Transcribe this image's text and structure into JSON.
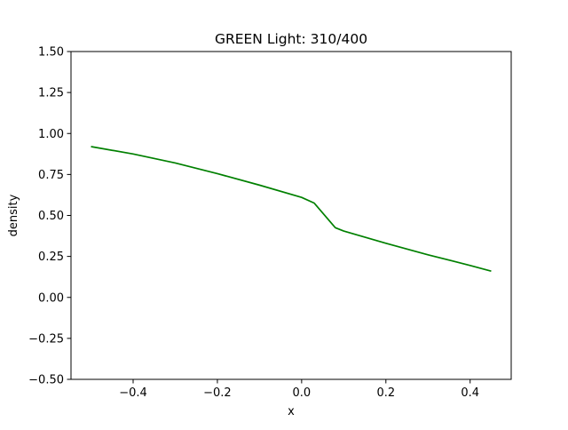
{
  "chart_data": {
    "type": "line",
    "title": "GREEN Light: 310/400",
    "xlabel": "x",
    "ylabel": "density",
    "xlim": [
      -0.5475,
      0.4975
    ],
    "ylim": [
      -0.5,
      1.5
    ],
    "xticks": [
      -0.4,
      -0.2,
      0.0,
      0.2,
      0.4
    ],
    "xtick_labels": [
      "−0.4",
      "−0.2",
      "0.0",
      "0.2",
      "0.4"
    ],
    "yticks": [
      -0.5,
      -0.25,
      0.0,
      0.25,
      0.5,
      0.75,
      1.0,
      1.25,
      1.5
    ],
    "ytick_labels": [
      "−0.50",
      "−0.25",
      "0.00",
      "0.25",
      "0.50",
      "0.75",
      "1.00",
      "1.25",
      "1.50"
    ],
    "grid": false,
    "legend": "none",
    "series": [
      {
        "color": "#008000",
        "x": [
          -0.5,
          -0.4,
          -0.3,
          -0.2,
          -0.1,
          0.0,
          0.03,
          0.08,
          0.1,
          0.2,
          0.3,
          0.4,
          0.45
        ],
        "y": [
          0.92,
          0.875,
          0.82,
          0.755,
          0.685,
          0.61,
          0.575,
          0.425,
          0.405,
          0.33,
          0.26,
          0.195,
          0.16
        ]
      }
    ]
  }
}
